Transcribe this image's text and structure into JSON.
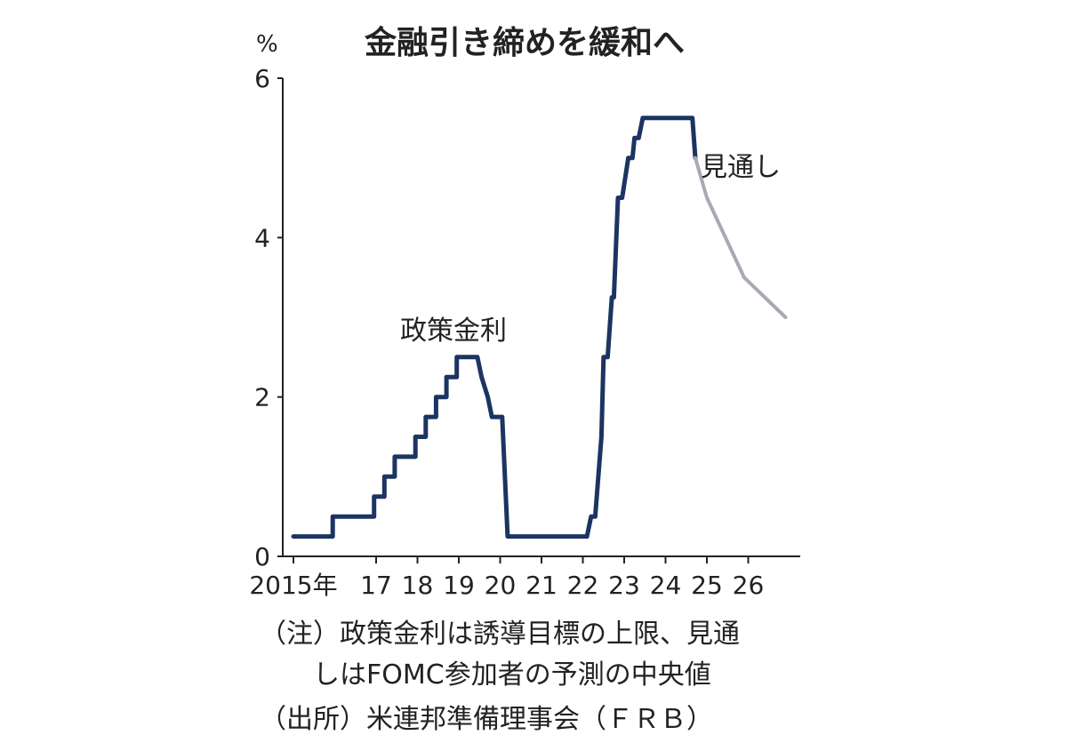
{
  "chart_data": {
    "type": "line",
    "title": "金融引き締めを緩和へ",
    "unit": "%",
    "ylim": [
      0,
      6
    ],
    "yticks": [
      0,
      2,
      4,
      6
    ],
    "xlim": [
      2015,
      2026.9
    ],
    "xtick_labels": [
      {
        "x": 2015,
        "label": "2015年"
      },
      {
        "x": 2017,
        "label": "17"
      },
      {
        "x": 2018,
        "label": "18"
      },
      {
        "x": 2019,
        "label": "19"
      },
      {
        "x": 2020,
        "label": "20"
      },
      {
        "x": 2021,
        "label": "21"
      },
      {
        "x": 2022,
        "label": "22"
      },
      {
        "x": 2023,
        "label": "23"
      },
      {
        "x": 2024,
        "label": "24"
      },
      {
        "x": 2025,
        "label": "25"
      },
      {
        "x": 2026,
        "label": "26"
      }
    ],
    "series": [
      {
        "name": "政策金利",
        "color": "#1c3461",
        "points": [
          [
            2015.0,
            0.25
          ],
          [
            2015.95,
            0.25
          ],
          [
            2015.95,
            0.5
          ],
          [
            2016.95,
            0.5
          ],
          [
            2016.95,
            0.75
          ],
          [
            2017.2,
            0.75
          ],
          [
            2017.2,
            1.0
          ],
          [
            2017.45,
            1.0
          ],
          [
            2017.45,
            1.25
          ],
          [
            2017.95,
            1.25
          ],
          [
            2017.95,
            1.5
          ],
          [
            2018.2,
            1.5
          ],
          [
            2018.2,
            1.75
          ],
          [
            2018.45,
            1.75
          ],
          [
            2018.45,
            2.0
          ],
          [
            2018.7,
            2.0
          ],
          [
            2018.7,
            2.25
          ],
          [
            2018.95,
            2.25
          ],
          [
            2018.95,
            2.5
          ],
          [
            2019.45,
            2.5
          ],
          [
            2019.55,
            2.25
          ],
          [
            2019.7,
            2.0
          ],
          [
            2019.8,
            1.75
          ],
          [
            2020.05,
            1.75
          ],
          [
            2020.18,
            0.25
          ],
          [
            2022.1,
            0.25
          ],
          [
            2022.2,
            0.5
          ],
          [
            2022.3,
            0.5
          ],
          [
            2022.45,
            1.5
          ],
          [
            2022.5,
            2.5
          ],
          [
            2022.6,
            2.5
          ],
          [
            2022.7,
            3.25
          ],
          [
            2022.75,
            3.25
          ],
          [
            2022.85,
            4.5
          ],
          [
            2022.95,
            4.5
          ],
          [
            2023.1,
            5.0
          ],
          [
            2023.2,
            5.0
          ],
          [
            2023.25,
            5.25
          ],
          [
            2023.35,
            5.25
          ],
          [
            2023.45,
            5.5
          ],
          [
            2024.65,
            5.5
          ],
          [
            2024.72,
            5.0
          ]
        ]
      },
      {
        "name": "見通し",
        "color": "#a9a9b6",
        "points": [
          [
            2024.72,
            5.0
          ],
          [
            2025.0,
            4.5
          ],
          [
            2025.9,
            3.5
          ],
          [
            2026.9,
            3.0
          ]
        ]
      }
    ]
  },
  "notes": {
    "line1": "（注）政策金利は誘導目標の上限、見通",
    "line2": "しはFOMC参加者の予測の中央値",
    "source": "（出所）米連邦準備理事会（ＦＲＢ）"
  }
}
